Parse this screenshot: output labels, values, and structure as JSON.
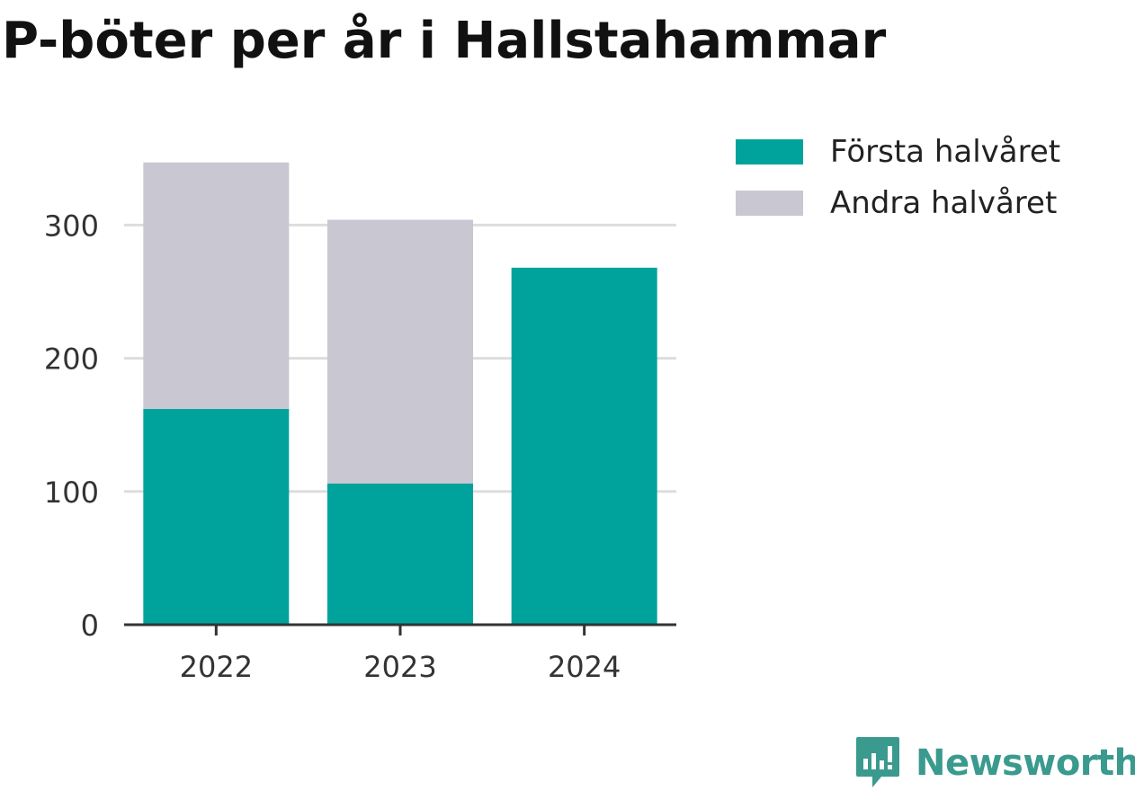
{
  "chart_data": {
    "type": "bar",
    "stacked": true,
    "title": "P-böter per år i Hallstahammar",
    "categories": [
      "2022",
      "2023",
      "2024"
    ],
    "series": [
      {
        "name": "Första halvåret",
        "values": [
          162,
          106,
          268
        ],
        "color": "#00a39b"
      },
      {
        "name": "Andra halvåret",
        "values": [
          185,
          198,
          0
        ],
        "color": "#c8c7d2"
      }
    ],
    "ylim": [
      0,
      350
    ],
    "yticks": [
      0,
      100,
      200,
      300
    ],
    "xlabel": "",
    "ylabel": "",
    "grid": true,
    "legend_position": "right"
  },
  "branding": {
    "name": "Newsworthy",
    "color": "#3a9a8e",
    "icon": "newsworthy-logo-icon"
  }
}
